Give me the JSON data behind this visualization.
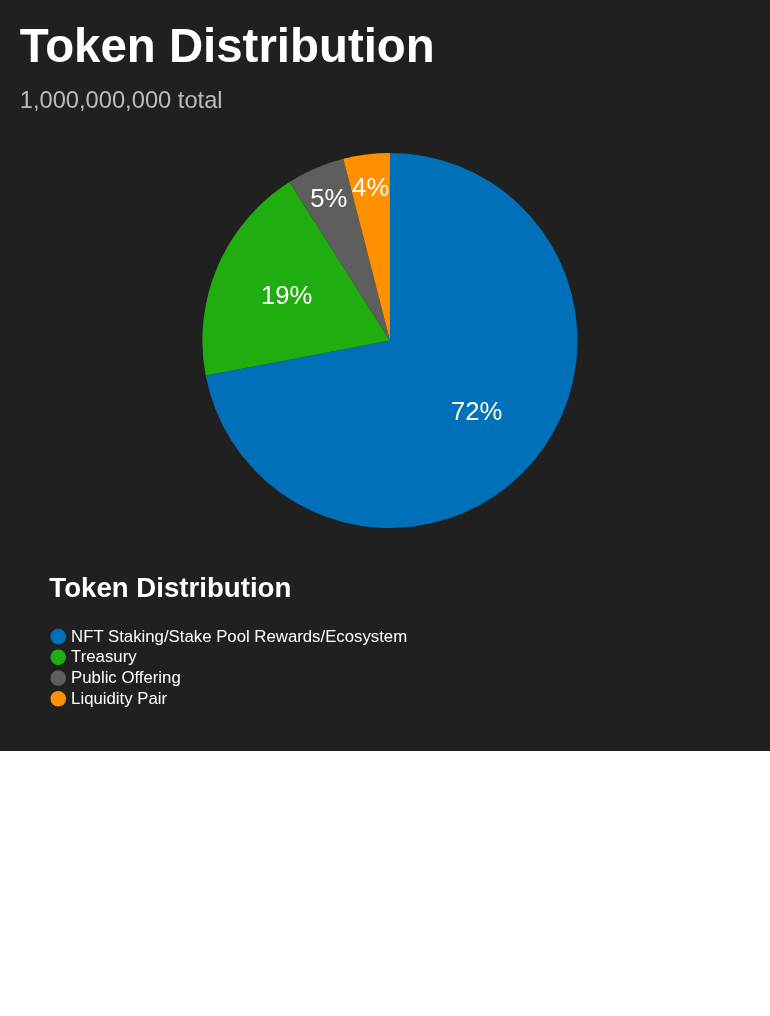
{
  "chart_data": {
    "type": "pie",
    "title": "Token Distribution",
    "subtitle": "1,000,000,000 total",
    "legend_title": "Token Distribution",
    "categories": [
      "NFT Staking/Stake Pool Rewards/Ecosystem",
      "Treasury",
      "Public Offering",
      "Liquidity Pair"
    ],
    "values": [
      72,
      19,
      5,
      4
    ],
    "colors": [
      "#0070b8",
      "#20ad0f",
      "#5e5e5e",
      "#ff9000"
    ],
    "value_labels": [
      "72%",
      "19%",
      "5%",
      "4%"
    ],
    "legend": "bottom"
  }
}
